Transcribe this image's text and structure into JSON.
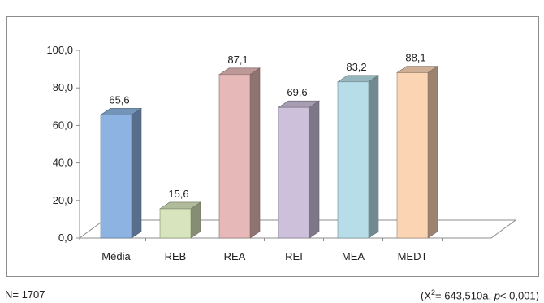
{
  "chart_data": {
    "type": "bar",
    "categories": [
      "Média",
      "REB",
      "REA",
      "REI",
      "MEA",
      "MEDT"
    ],
    "values": [
      65.6,
      15.6,
      87.1,
      69.6,
      83.2,
      88.1
    ],
    "value_labels": [
      "65,6",
      "15,6",
      "87,1",
      "69,6",
      "83,2",
      "88,1"
    ],
    "ylim": [
      0,
      100
    ],
    "y_ticks": [
      "0,0",
      "20,0",
      "40,0",
      "60,0",
      "80,0",
      "100,0"
    ],
    "y_tick_values": [
      0,
      20,
      40,
      60,
      80,
      100
    ],
    "colors": [
      "#8db3e2",
      "#d7e4bc",
      "#e6b9b8",
      "#ccc0da",
      "#b7dee8",
      "#fbd4b4"
    ],
    "grid": false,
    "legend": "none",
    "style": "3d-column"
  },
  "footer": {
    "n_label": "N= 1707",
    "stat_open": "(X",
    "stat_sup": "2",
    "stat_mid": "= 643,510a, ",
    "stat_p": "p",
    "stat_close": "< 0,001)"
  }
}
